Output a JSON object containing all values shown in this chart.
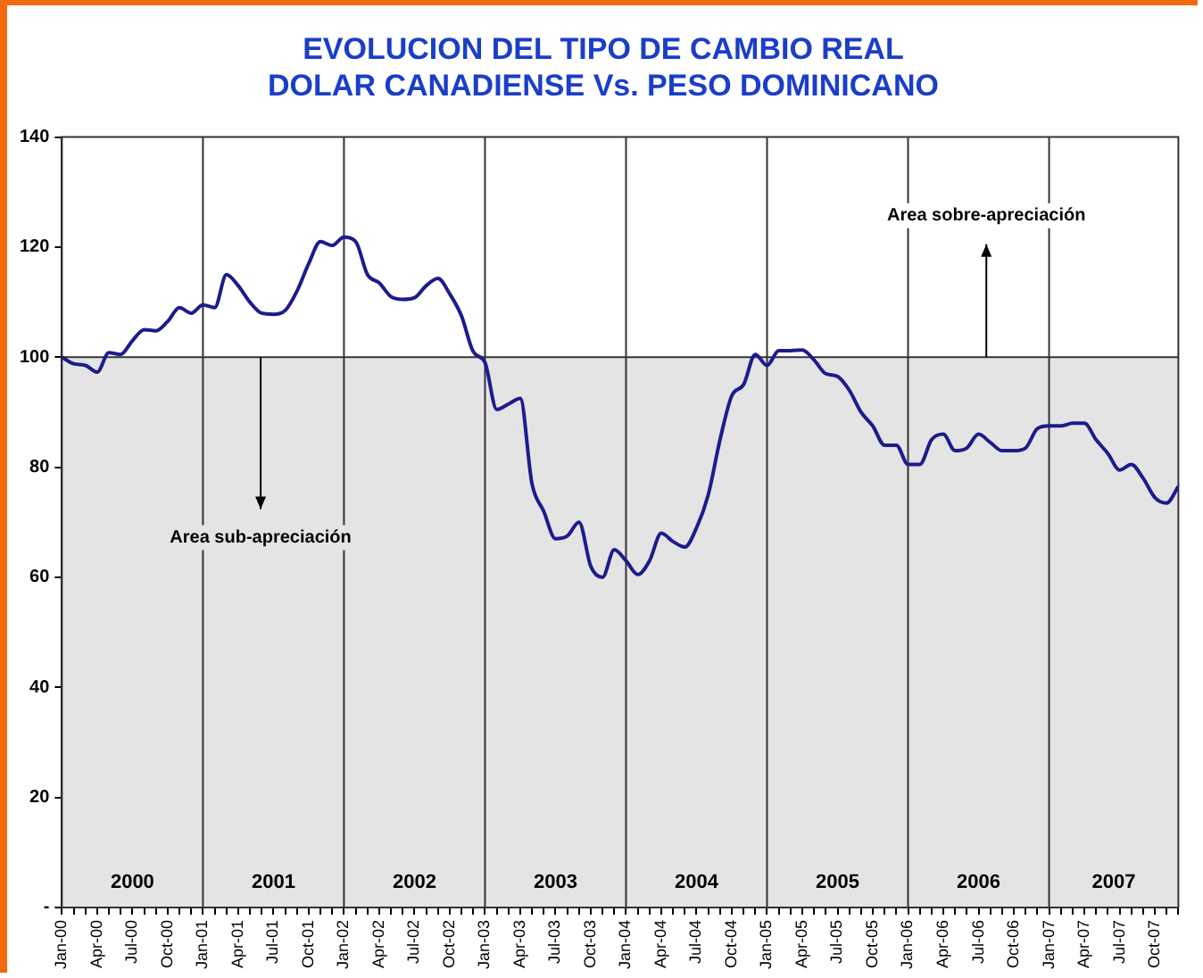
{
  "chart_data": {
    "type": "line",
    "title": [
      "EVOLUCION DEL TIPO DE CAMBIO REAL",
      "DOLAR CANADIENSE Vs. PESO DOMINICANO"
    ],
    "x": [
      "2000-01",
      "2000-02",
      "2000-03",
      "2000-04",
      "2000-05",
      "2000-06",
      "2000-07",
      "2000-08",
      "2000-09",
      "2000-10",
      "2000-11",
      "2000-12",
      "2001-01",
      "2001-02",
      "2001-03",
      "2001-04",
      "2001-05",
      "2001-06",
      "2001-07",
      "2001-08",
      "2001-09",
      "2001-10",
      "2001-11",
      "2001-12",
      "2002-01",
      "2002-02",
      "2002-03",
      "2002-04",
      "2002-05",
      "2002-06",
      "2002-07",
      "2002-08",
      "2002-09",
      "2002-10",
      "2002-11",
      "2002-12",
      "2003-01",
      "2003-02",
      "2003-03",
      "2003-04",
      "2003-05",
      "2003-06",
      "2003-07",
      "2003-08",
      "2003-09",
      "2003-10",
      "2003-11",
      "2003-12",
      "2004-01",
      "2004-02",
      "2004-03",
      "2004-04",
      "2004-05",
      "2004-06",
      "2004-07",
      "2004-08",
      "2004-09",
      "2004-10",
      "2004-11",
      "2004-12",
      "2005-01",
      "2005-02",
      "2005-03",
      "2005-04",
      "2005-05",
      "2005-06",
      "2005-07",
      "2005-08",
      "2005-09",
      "2005-10",
      "2005-11",
      "2005-12",
      "2006-01",
      "2006-02",
      "2006-03",
      "2006-04",
      "2006-05",
      "2006-06",
      "2006-07",
      "2006-08",
      "2006-09",
      "2006-10",
      "2006-11",
      "2006-12",
      "2007-01",
      "2007-02",
      "2007-03",
      "2007-04",
      "2007-05",
      "2007-06",
      "2007-07",
      "2007-08",
      "2007-09",
      "2007-10",
      "2007-11",
      "2007-12"
    ],
    "series": [
      {
        "color": "#1c1c8c",
        "values": [
          100,
          98.8,
          98.5,
          97.3,
          100.8,
          100.5,
          103,
          105,
          104.8,
          106.5,
          109,
          108,
          109.5,
          109,
          115,
          113,
          110,
          108,
          107.8,
          108.5,
          112,
          117,
          121,
          120.3,
          121.8,
          121,
          115,
          113.5,
          111,
          110.5,
          110.8,
          113,
          114.3,
          111.5,
          107.5,
          101,
          99,
          90.5,
          91.5,
          92.5,
          77,
          72,
          67,
          67.5,
          70,
          62,
          60,
          65,
          63,
          60.5,
          63,
          68,
          66.5,
          65.5,
          69,
          75,
          85,
          93,
          95,
          100.5,
          98.5,
          101.2,
          101.2,
          101.3,
          99.5,
          97,
          96.5,
          94,
          90,
          87.5,
          84,
          84,
          80.5,
          80.5,
          85,
          86,
          83,
          83.5,
          86,
          84.5,
          83,
          83,
          83.5,
          87,
          87.5,
          87.5,
          88,
          88,
          85,
          82.5,
          79.5,
          80.5,
          78,
          74.5,
          73.5,
          76.5
        ]
      }
    ],
    "xlim": [
      "2000-01",
      "2007-12"
    ],
    "xticks": [
      {
        "value": "2000-01",
        "label": "Jan-00"
      },
      {
        "value": "2000-02",
        "label": null
      },
      {
        "value": "2000-03",
        "label": null
      },
      {
        "value": "2000-04",
        "label": "Apr-00"
      },
      {
        "value": "2000-05",
        "label": null
      },
      {
        "value": "2000-06",
        "label": null
      },
      {
        "value": "2000-07",
        "label": "Jul-00"
      },
      {
        "value": "2000-08",
        "label": null
      },
      {
        "value": "2000-09",
        "label": null
      },
      {
        "value": "2000-10",
        "label": "Oct-00"
      },
      {
        "value": "2000-11",
        "label": null
      },
      {
        "value": "2000-12",
        "label": null
      },
      {
        "value": "2001-01",
        "label": "Jan-01"
      },
      {
        "value": "2001-02",
        "label": null
      },
      {
        "value": "2001-03",
        "label": null
      },
      {
        "value": "2001-04",
        "label": "Apr-01"
      },
      {
        "value": "2001-05",
        "label": null
      },
      {
        "value": "2001-06",
        "label": null
      },
      {
        "value": "2001-07",
        "label": "Jul-01"
      },
      {
        "value": "2001-08",
        "label": null
      },
      {
        "value": "2001-09",
        "label": null
      },
      {
        "value": "2001-10",
        "label": "Oct-01"
      },
      {
        "value": "2001-11",
        "label": null
      },
      {
        "value": "2001-12",
        "label": null
      },
      {
        "value": "2002-01",
        "label": "Jan-02"
      },
      {
        "value": "2002-02",
        "label": null
      },
      {
        "value": "2002-03",
        "label": null
      },
      {
        "value": "2002-04",
        "label": "Apr-02"
      },
      {
        "value": "2002-05",
        "label": null
      },
      {
        "value": "2002-06",
        "label": null
      },
      {
        "value": "2002-07",
        "label": "Jul-02"
      },
      {
        "value": "2002-08",
        "label": null
      },
      {
        "value": "2002-09",
        "label": null
      },
      {
        "value": "2002-10",
        "label": "Oct-02"
      },
      {
        "value": "2002-11",
        "label": null
      },
      {
        "value": "2002-12",
        "label": null
      },
      {
        "value": "2003-01",
        "label": "Jan-03"
      },
      {
        "value": "2003-02",
        "label": null
      },
      {
        "value": "2003-03",
        "label": null
      },
      {
        "value": "2003-04",
        "label": "Apr-03"
      },
      {
        "value": "2003-05",
        "label": null
      },
      {
        "value": "2003-06",
        "label": null
      },
      {
        "value": "2003-07",
        "label": "Jul-03"
      },
      {
        "value": "2003-08",
        "label": null
      },
      {
        "value": "2003-09",
        "label": null
      },
      {
        "value": "2003-10",
        "label": "Oct-03"
      },
      {
        "value": "2003-11",
        "label": null
      },
      {
        "value": "2003-12",
        "label": null
      },
      {
        "value": "2004-01",
        "label": "Jan-04"
      },
      {
        "value": "2004-02",
        "label": null
      },
      {
        "value": "2004-03",
        "label": null
      },
      {
        "value": "2004-04",
        "label": "Apr-04"
      },
      {
        "value": "2004-05",
        "label": null
      },
      {
        "value": "2004-06",
        "label": null
      },
      {
        "value": "2004-07",
        "label": "Jul-04"
      },
      {
        "value": "2004-08",
        "label": null
      },
      {
        "value": "2004-09",
        "label": null
      },
      {
        "value": "2004-10",
        "label": "Oct-04"
      },
      {
        "value": "2004-11",
        "label": null
      },
      {
        "value": "2004-12",
        "label": null
      },
      {
        "value": "2005-01",
        "label": "Jan-05"
      },
      {
        "value": "2005-02",
        "label": null
      },
      {
        "value": "2005-03",
        "label": null
      },
      {
        "value": "2005-04",
        "label": "Apr-05"
      },
      {
        "value": "2005-05",
        "label": null
      },
      {
        "value": "2005-06",
        "label": null
      },
      {
        "value": "2005-07",
        "label": "Jul-05"
      },
      {
        "value": "2005-08",
        "label": null
      },
      {
        "value": "2005-09",
        "label": null
      },
      {
        "value": "2005-10",
        "label": "Oct-05"
      },
      {
        "value": "2005-11",
        "label": null
      },
      {
        "value": "2005-12",
        "label": null
      },
      {
        "value": "2006-01",
        "label": "Jan-06"
      },
      {
        "value": "2006-02",
        "label": null
      },
      {
        "value": "2006-03",
        "label": null
      },
      {
        "value": "2006-04",
        "label": "Apr-06"
      },
      {
        "value": "2006-05",
        "label": null
      },
      {
        "value": "2006-06",
        "label": null
      },
      {
        "value": "2006-07",
        "label": "Jul-06"
      },
      {
        "value": "2006-08",
        "label": null
      },
      {
        "value": "2006-09",
        "label": null
      },
      {
        "value": "2006-10",
        "label": "Oct-06"
      },
      {
        "value": "2006-11",
        "label": null
      },
      {
        "value": "2006-12",
        "label": null
      },
      {
        "value": "2007-01",
        "label": "Jan-07"
      },
      {
        "value": "2007-02",
        "label": null
      },
      {
        "value": "2007-03",
        "label": null
      },
      {
        "value": "2007-04",
        "label": "Apr-07"
      },
      {
        "value": "2007-05",
        "label": null
      },
      {
        "value": "2007-06",
        "label": null
      },
      {
        "value": "2007-07",
        "label": "Jul-07"
      },
      {
        "value": "2007-08",
        "label": null
      },
      {
        "value": "2007-09",
        "label": null
      },
      {
        "value": "2007-10",
        "label": "Oct-07"
      },
      {
        "value": "2007-11",
        "label": null
      },
      {
        "value": "2007-12",
        "label": null
      }
    ],
    "ylim": [
      0,
      140
    ],
    "yticks": [
      {
        "value": 0,
        "label": "-"
      },
      20,
      40,
      60,
      80,
      100,
      120,
      140
    ],
    "grid": false,
    "legend": false,
    "marker": "none",
    "line_style": "solid",
    "bands": [
      {
        "axis": "y",
        "from": 0,
        "to": 100,
        "color": "#e4e4e4"
      }
    ],
    "ref_lines": [
      {
        "axis": "y",
        "value": 100
      },
      {
        "axis": "x",
        "value": "2001-01"
      },
      {
        "axis": "x",
        "value": "2002-01"
      },
      {
        "axis": "x",
        "value": "2003-01"
      },
      {
        "axis": "x",
        "value": "2004-01"
      },
      {
        "axis": "x",
        "value": "2005-01"
      },
      {
        "axis": "x",
        "value": "2006-01"
      },
      {
        "axis": "x",
        "value": "2007-01"
      }
    ],
    "annotations": [
      "2000",
      "2001",
      "2002",
      "2003",
      "2004",
      "2005",
      "2006",
      "2007",
      "Area sub-apreciación",
      "Area sobre-apreciación"
    ]
  }
}
